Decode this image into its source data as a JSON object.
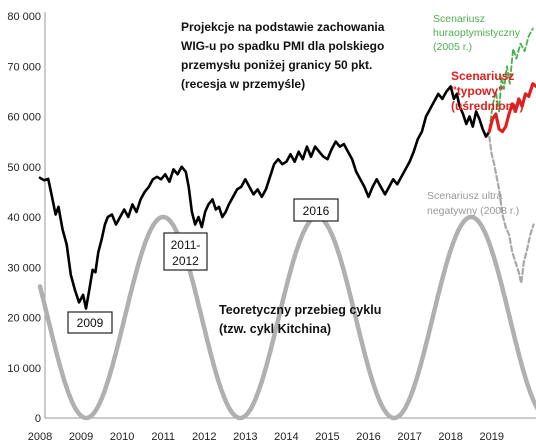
{
  "chart_data": {
    "type": "line",
    "title_lines": [
      "Projekcje na podstawie zachowania",
      "WIG-u po spadku PMI dla polskiego",
      "przemysłu poniżej granicy 50 pkt.",
      "(recesja w przemyśle)"
    ],
    "x_ticks": [
      "2008",
      "2009",
      "2010",
      "2011",
      "2012",
      "2013",
      "2014",
      "2015",
      "2016",
      "2017",
      "2018",
      "2019"
    ],
    "y_ticks": [
      "0",
      "10 000",
      "20 000",
      "30 000",
      "40 000",
      "50 000",
      "60 000",
      "70 000",
      "80 000"
    ],
    "xlim": [
      2008.0,
      2020.2
    ],
    "ylim": [
      0,
      80000
    ],
    "grid": false,
    "series": [
      {
        "role": "wig",
        "color": "#000000",
        "points": [
          [
            2008.0,
            47800
          ],
          [
            2008.1,
            47300
          ],
          [
            2008.2,
            47600
          ],
          [
            2008.28,
            44500
          ],
          [
            2008.38,
            40500
          ],
          [
            2008.45,
            42000
          ],
          [
            2008.55,
            37500
          ],
          [
            2008.65,
            34500
          ],
          [
            2008.75,
            28500
          ],
          [
            2008.85,
            25500
          ],
          [
            2008.95,
            23000
          ],
          [
            2009.05,
            24500
          ],
          [
            2009.12,
            21800
          ],
          [
            2009.2,
            25500
          ],
          [
            2009.28,
            29500
          ],
          [
            2009.35,
            29000
          ],
          [
            2009.42,
            33000
          ],
          [
            2009.5,
            35500
          ],
          [
            2009.58,
            38500
          ],
          [
            2009.65,
            40000
          ],
          [
            2009.75,
            40500
          ],
          [
            2009.85,
            38500
          ],
          [
            2009.95,
            40000
          ],
          [
            2010.05,
            41500
          ],
          [
            2010.15,
            40000
          ],
          [
            2010.25,
            42500
          ],
          [
            2010.35,
            41000
          ],
          [
            2010.45,
            43500
          ],
          [
            2010.55,
            45000
          ],
          [
            2010.65,
            46000
          ],
          [
            2010.75,
            47500
          ],
          [
            2010.85,
            48000
          ],
          [
            2010.95,
            47500
          ],
          [
            2011.05,
            48500
          ],
          [
            2011.15,
            47000
          ],
          [
            2011.25,
            49500
          ],
          [
            2011.35,
            48500
          ],
          [
            2011.45,
            50000
          ],
          [
            2011.55,
            49000
          ],
          [
            2011.62,
            46000
          ],
          [
            2011.7,
            41000
          ],
          [
            2011.78,
            38500
          ],
          [
            2011.86,
            40000
          ],
          [
            2011.94,
            38000
          ],
          [
            2012.02,
            41000
          ],
          [
            2012.1,
            42500
          ],
          [
            2012.2,
            43500
          ],
          [
            2012.28,
            41500
          ],
          [
            2012.36,
            42000
          ],
          [
            2012.44,
            40000
          ],
          [
            2012.52,
            41000
          ],
          [
            2012.6,
            42500
          ],
          [
            2012.7,
            44000
          ],
          [
            2012.8,
            45500
          ],
          [
            2012.9,
            46000
          ],
          [
            2013.0,
            47500
          ],
          [
            2013.1,
            46000
          ],
          [
            2013.2,
            44500
          ],
          [
            2013.3,
            45500
          ],
          [
            2013.4,
            44000
          ],
          [
            2013.5,
            45500
          ],
          [
            2013.6,
            48000
          ],
          [
            2013.7,
            50500
          ],
          [
            2013.8,
            51500
          ],
          [
            2013.9,
            50500
          ],
          [
            2014.0,
            51000
          ],
          [
            2014.1,
            52500
          ],
          [
            2014.2,
            51000
          ],
          [
            2014.3,
            53000
          ],
          [
            2014.4,
            51500
          ],
          [
            2014.5,
            54000
          ],
          [
            2014.6,
            52000
          ],
          [
            2014.7,
            54000
          ],
          [
            2014.8,
            53000
          ],
          [
            2014.9,
            52000
          ],
          [
            2015.0,
            51500
          ],
          [
            2015.1,
            53500
          ],
          [
            2015.2,
            55000
          ],
          [
            2015.3,
            54000
          ],
          [
            2015.4,
            54500
          ],
          [
            2015.5,
            53000
          ],
          [
            2015.6,
            51500
          ],
          [
            2015.7,
            49000
          ],
          [
            2015.8,
            47500
          ],
          [
            2015.9,
            46000
          ],
          [
            2016.0,
            44000
          ],
          [
            2016.1,
            46000
          ],
          [
            2016.2,
            47500
          ],
          [
            2016.3,
            46000
          ],
          [
            2016.4,
            44500
          ],
          [
            2016.5,
            46000
          ],
          [
            2016.6,
            47500
          ],
          [
            2016.7,
            46500
          ],
          [
            2016.8,
            48000
          ],
          [
            2016.9,
            49500
          ],
          [
            2017.0,
            51000
          ],
          [
            2017.1,
            53000
          ],
          [
            2017.2,
            55500
          ],
          [
            2017.3,
            57000
          ],
          [
            2017.4,
            60000
          ],
          [
            2017.5,
            61500
          ],
          [
            2017.6,
            63000
          ],
          [
            2017.7,
            64500
          ],
          [
            2017.8,
            63500
          ],
          [
            2017.9,
            65000
          ],
          [
            2018.0,
            66000
          ],
          [
            2018.08,
            63500
          ],
          [
            2018.15,
            64500
          ],
          [
            2018.22,
            62000
          ],
          [
            2018.3,
            60500
          ],
          [
            2018.38,
            58500
          ],
          [
            2018.46,
            60000
          ],
          [
            2018.54,
            58000
          ],
          [
            2018.62,
            61000
          ],
          [
            2018.7,
            59500
          ],
          [
            2018.78,
            57500
          ],
          [
            2018.86,
            56000
          ],
          [
            2018.94,
            57000
          ]
        ]
      },
      {
        "role": "kitchin_cycle",
        "color": "#b0b0b0",
        "period": 3.75,
        "peak_x": 2011.0,
        "min": 0,
        "max": 40000,
        "x_start": 2008.0,
        "x_end": 2020.15
      },
      {
        "role": "scenario_hyper_optimistic",
        "color": "#4caf50",
        "dashed": true,
        "points": [
          [
            2018.94,
            57500
          ],
          [
            2019.02,
            62000
          ],
          [
            2019.1,
            65000
          ],
          [
            2019.18,
            61000
          ],
          [
            2019.24,
            68000
          ],
          [
            2019.3,
            65500
          ],
          [
            2019.37,
            70000
          ],
          [
            2019.44,
            66500
          ],
          [
            2019.52,
            73500
          ],
          [
            2019.6,
            71500
          ],
          [
            2019.7,
            74500
          ],
          [
            2019.8,
            73000
          ],
          [
            2019.9,
            76000
          ],
          [
            2020.0,
            77500
          ]
        ]
      },
      {
        "role": "scenario_typical",
        "color": "#e02020",
        "dashed": false,
        "points": [
          [
            2018.94,
            57000
          ],
          [
            2019.02,
            59500
          ],
          [
            2019.1,
            60500
          ],
          [
            2019.18,
            57500
          ],
          [
            2019.26,
            57000
          ],
          [
            2019.34,
            58000
          ],
          [
            2019.42,
            60500
          ],
          [
            2019.5,
            62500
          ],
          [
            2019.58,
            61000
          ],
          [
            2019.66,
            63500
          ],
          [
            2019.74,
            62000
          ],
          [
            2019.82,
            64500
          ],
          [
            2019.9,
            64000
          ],
          [
            2020.0,
            66500
          ],
          [
            2020.08,
            66000
          ]
        ]
      },
      {
        "role": "scenario_ultra_negative",
        "color": "#a8a8a8",
        "dashed": true,
        "points": [
          [
            2018.94,
            56000
          ],
          [
            2019.0,
            52500
          ],
          [
            2019.06,
            50500
          ],
          [
            2019.12,
            48000
          ],
          [
            2019.18,
            45500
          ],
          [
            2019.26,
            40500
          ],
          [
            2019.34,
            38000
          ],
          [
            2019.42,
            36500
          ],
          [
            2019.5,
            33000
          ],
          [
            2019.58,
            31000
          ],
          [
            2019.66,
            29000
          ],
          [
            2019.72,
            26800
          ],
          [
            2019.78,
            31000
          ],
          [
            2019.86,
            33500
          ],
          [
            2019.94,
            36500
          ],
          [
            2020.02,
            38500
          ]
        ]
      }
    ],
    "annotations": {
      "box_2009": "2009",
      "box_2011_line1": "2011-",
      "box_2011_line2": "2012",
      "box_2016": "2016",
      "cycle_line1": "Teoretyczny przebieg cyklu",
      "cycle_line2": "(tzw. cykl Kitchina)",
      "green_line1": "Scenariusz",
      "green_line2": "huraoptymistyczny",
      "green_line3": "(2005 r.)",
      "red_line1": "Scenariusz",
      "red_line2": "\"typowy\"",
      "red_line3": "(uśredniony)",
      "grey_line1": "Scenariusz ultra",
      "grey_line2": "negatywny (2008 r.)"
    }
  }
}
